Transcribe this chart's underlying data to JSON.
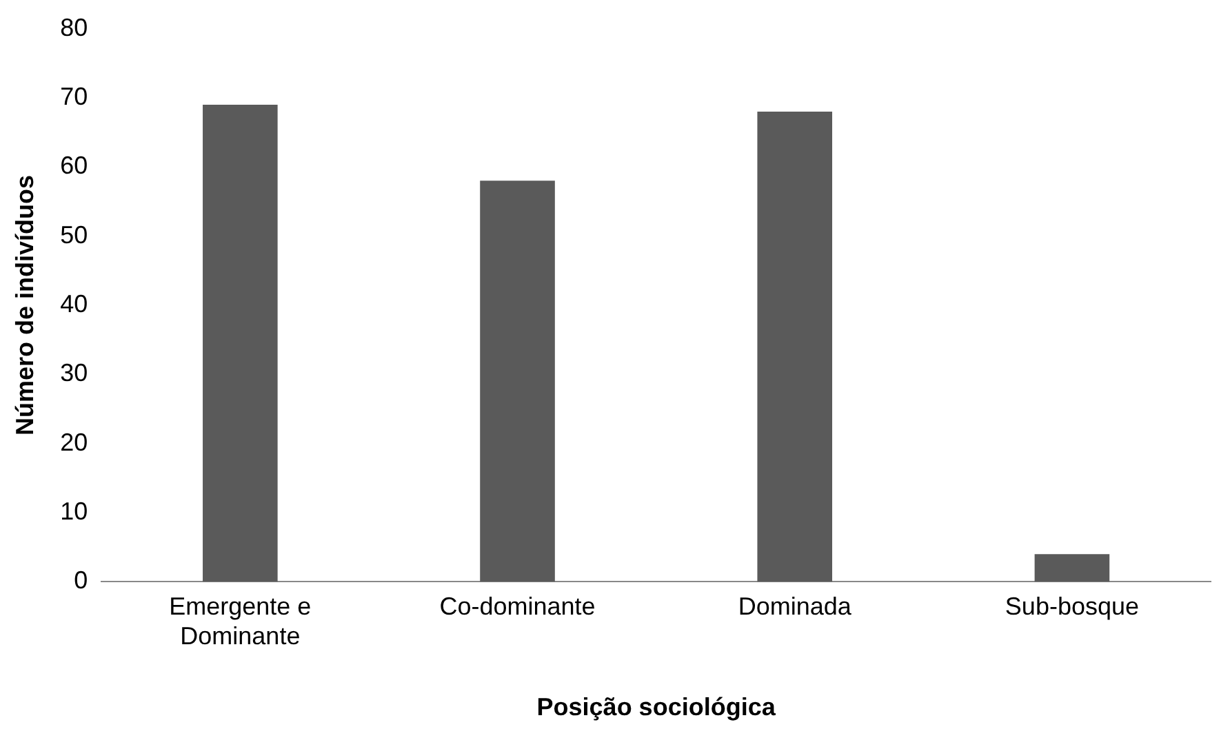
{
  "chart_data": {
    "type": "bar",
    "xlabel": "Posição sociológica",
    "ylabel": "Número de indivíduos",
    "categories": [
      "Emergente e Dominante",
      "Co-dominante",
      "Dominada",
      "Sub-bosque"
    ],
    "values": [
      69,
      58,
      68,
      4
    ],
    "color": "#5a5a5a",
    "ylim": [
      0,
      80
    ],
    "yticks": [
      0,
      10,
      20,
      30,
      40,
      50,
      60,
      70,
      80
    ],
    "grid": false,
    "legend": false
  }
}
